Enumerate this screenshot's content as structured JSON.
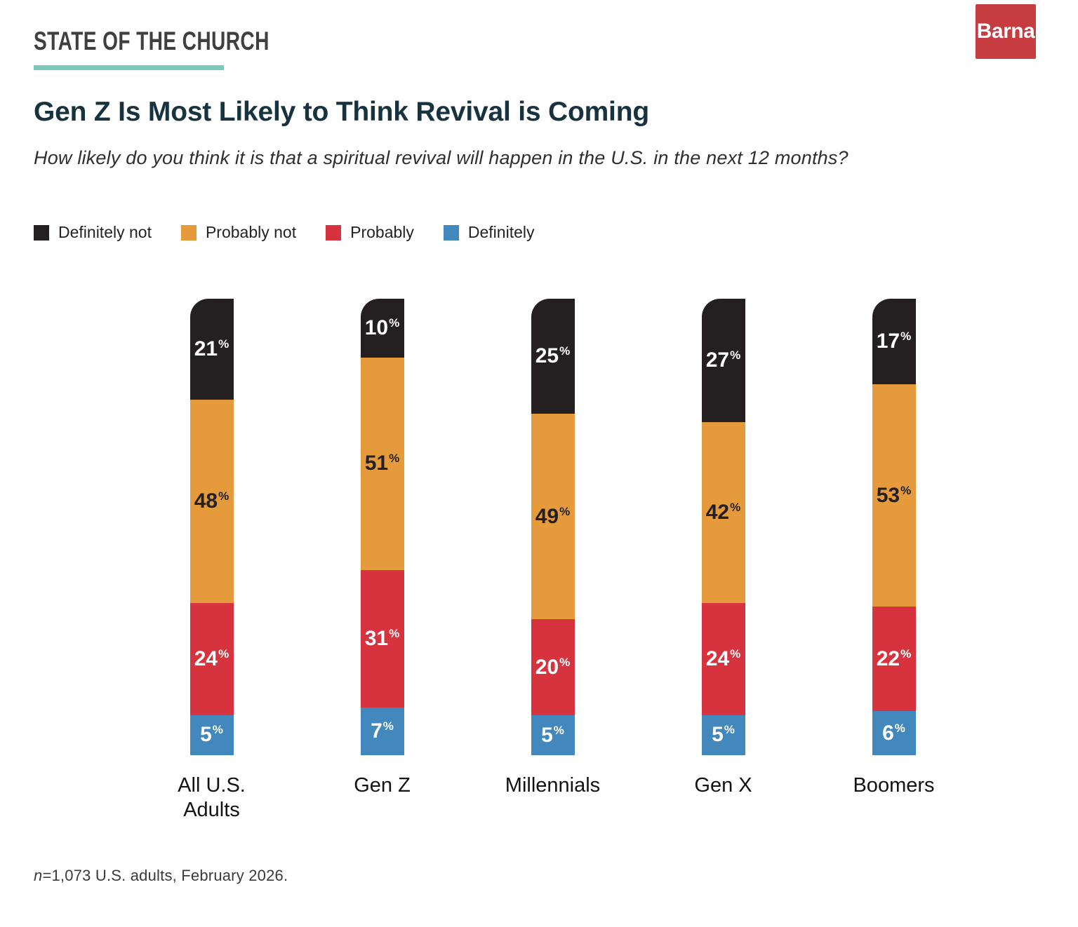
{
  "header": {
    "kicker": "STATE OF THE CHURCH",
    "logo": "Barna",
    "title": "Gen Z Is Most Likely to Think Revival is Coming",
    "subtitle": "How likely do you think it is that a spiritual revival will happen in the U.S. in the next 12 months?"
  },
  "colors": {
    "definitely_not_black": "#242021",
    "probably_not_orange": "#e59b3b",
    "probably_red": "#d6333f",
    "definitely_blue": "#4288bc",
    "accent_teal": "#7cc9bc",
    "title_navy": "#17333f",
    "logo_red": "#c63c40"
  },
  "legend": [
    {
      "label": "Definitely not",
      "color": "#242021"
    },
    {
      "label": "Probably not",
      "color": "#e59b3b"
    },
    {
      "label": "Probably",
      "color": "#d6333f"
    },
    {
      "label": "Definitely",
      "color": "#4288bc"
    }
  ],
  "chart_data": {
    "type": "bar",
    "stacked": true,
    "orientation": "vertical",
    "value_suffix": "%",
    "title": "Gen Z Is Most Likely to Think Revival is Coming",
    "categories": [
      "All U.S. Adults",
      "Gen Z",
      "Millennials",
      "Gen X",
      "Boomers"
    ],
    "series": [
      {
        "name": "Definitely not",
        "color": "#242021",
        "label_color": "#ffffff",
        "values": [
          21,
          10,
          25,
          27,
          17
        ]
      },
      {
        "name": "Probably not",
        "color": "#e59b3b",
        "label_color": "#242021",
        "values": [
          48,
          51,
          49,
          42,
          53
        ]
      },
      {
        "name": "Probably",
        "color": "#d6333f",
        "label_color": "#ffffff",
        "values": [
          24,
          31,
          20,
          24,
          22
        ]
      },
      {
        "name": "Definitely",
        "color": "#4288bc",
        "label_color": "#ffffff",
        "values": [
          5,
          7,
          5,
          5,
          6
        ]
      }
    ],
    "legend_position": "top",
    "grid": false,
    "axes_shown": false
  },
  "footnote": "n=1,073 U.S. adults, February 2026."
}
